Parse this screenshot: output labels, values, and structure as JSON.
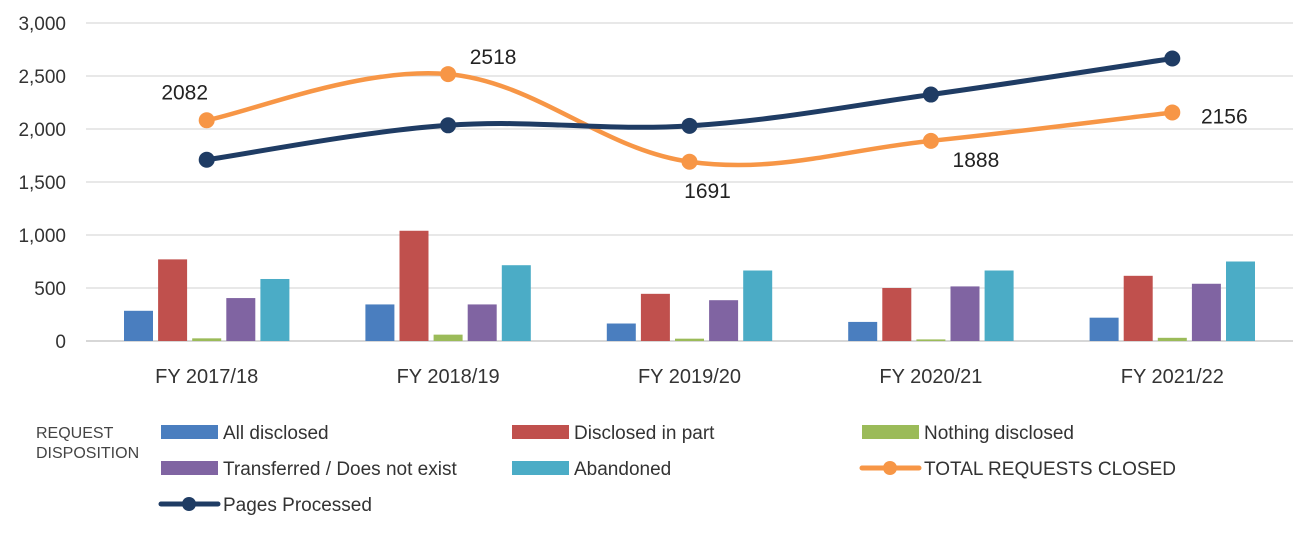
{
  "chart_data": {
    "type": "bar",
    "categories": [
      "FY 2017/18",
      "FY 2018/19",
      "FY 2019/20",
      "FY 2020/21",
      "FY 2021/22"
    ],
    "ylim": [
      0,
      3000
    ],
    "yticks": [
      "0",
      "500",
      "1,000",
      "1,500",
      "2,000",
      "2,500",
      "3,000"
    ],
    "ytick_values": [
      0,
      500,
      1000,
      1500,
      2000,
      2500,
      3000
    ],
    "grid": true,
    "legend_title": [
      "REQUEST",
      "DISPOSITION"
    ],
    "legend_position": "bottom",
    "bar_series": [
      {
        "name": "All disclosed",
        "color": "#4a7ebf",
        "values": [
          285,
          345,
          165,
          180,
          220
        ]
      },
      {
        "name": "Disclosed in part",
        "color": "#c0504d",
        "values": [
          770,
          1040,
          445,
          500,
          615
        ]
      },
      {
        "name": "Nothing disclosed",
        "color": "#9bbb59",
        "values": [
          25,
          60,
          22,
          15,
          30
        ]
      },
      {
        "name": "Transferred / Does not exist",
        "color": "#8064a2",
        "values": [
          405,
          345,
          385,
          515,
          540
        ]
      },
      {
        "name": "Abandoned",
        "color": "#4bacc6",
        "values": [
          585,
          715,
          665,
          665,
          750
        ]
      }
    ],
    "line_series": [
      {
        "name": "TOTAL REQUESTS CLOSED",
        "color": "#f79646",
        "values": [
          2082,
          2518,
          1691,
          1888,
          2156
        ],
        "data_labels": [
          "2082",
          "2518",
          "1691",
          "1888",
          "2156"
        ]
      },
      {
        "name": "Pages Processed",
        "color": "#1f3c64",
        "values": [
          1710,
          2035,
          2030,
          2325,
          2665
        ]
      }
    ]
  }
}
